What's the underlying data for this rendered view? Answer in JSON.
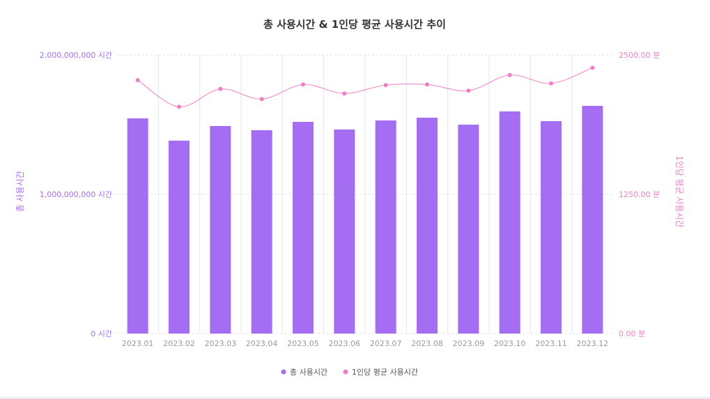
{
  "chart_data": {
    "type": "bar",
    "title": "총 사용시간 & 1인당 평균 사용시간 추이",
    "categories": [
      "2023.01",
      "2023.02",
      "2023.03",
      "2023.04",
      "2023.05",
      "2023.06",
      "2023.07",
      "2023.08",
      "2023.09",
      "2023.10",
      "2023.11",
      "2023.12"
    ],
    "y_left": {
      "label": "총 사용시간",
      "range": [
        0,
        2000000000
      ],
      "ticks": [
        0,
        1000000000,
        2000000000
      ],
      "tick_labels": [
        "0 시간",
        "1,000,000,000 시간",
        "2,000,000,000 시간"
      ]
    },
    "y_right": {
      "label": "1인당 평균 사용시간",
      "range": [
        0,
        2500
      ],
      "ticks": [
        0,
        1250,
        2500
      ],
      "tick_labels": [
        "0.00 분",
        "1250.00 분",
        "2500.00 분"
      ]
    },
    "series": [
      {
        "name": "총 사용시간",
        "type": "bar",
        "axis": "left",
        "color": "#a56ef2",
        "values": [
          1545000000,
          1385000000,
          1490000000,
          1460000000,
          1520000000,
          1465000000,
          1530000000,
          1550000000,
          1500000000,
          1595000000,
          1525000000,
          1635000000
        ]
      },
      {
        "name": "1인당 평균 사용시간",
        "type": "line",
        "axis": "right",
        "color": "#ee7fc4",
        "values": [
          2275,
          2035,
          2195,
          2105,
          2235,
          2155,
          2230,
          2235,
          2180,
          2320,
          2245,
          2385
        ]
      }
    ],
    "legend": "bottom-center",
    "grid": true
  }
}
